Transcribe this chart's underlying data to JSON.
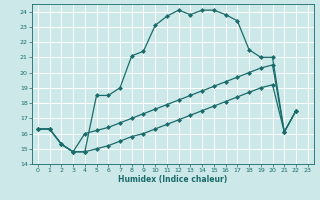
{
  "xlabel": "Humidex (Indice chaleur)",
  "background_color": "#cde8e8",
  "grid_color": "#ffffff",
  "line_color": "#1a6b6b",
  "xlim": [
    -0.5,
    23.5
  ],
  "ylim": [
    14,
    24.5
  ],
  "xticks": [
    0,
    1,
    2,
    3,
    4,
    5,
    6,
    7,
    8,
    9,
    10,
    11,
    12,
    13,
    14,
    15,
    16,
    17,
    18,
    19,
    20,
    21,
    22,
    23
  ],
  "yticks": [
    14,
    15,
    16,
    17,
    18,
    19,
    20,
    21,
    22,
    23,
    24
  ],
  "line1_x": [
    0,
    1,
    2,
    3,
    4,
    5,
    6,
    7,
    8,
    9,
    10,
    11,
    12,
    13,
    14,
    15,
    16,
    17,
    18,
    19,
    20,
    21,
    22
  ],
  "line1_y": [
    16.3,
    16.3,
    15.3,
    14.8,
    14.8,
    18.5,
    18.5,
    19.0,
    21.1,
    21.4,
    23.1,
    23.7,
    24.1,
    23.8,
    24.1,
    24.1,
    23.8,
    23.4,
    21.5,
    21.0,
    21.0,
    16.1,
    17.5
  ],
  "line2_x": [
    0,
    1,
    2,
    3,
    4,
    5,
    6,
    7,
    8,
    9,
    10,
    11,
    12,
    13,
    14,
    15,
    16,
    17,
    18,
    19,
    20,
    21,
    22
  ],
  "line2_y": [
    16.3,
    16.3,
    15.3,
    14.8,
    16.0,
    16.2,
    16.4,
    16.7,
    17.0,
    17.3,
    17.6,
    17.9,
    18.2,
    18.5,
    18.8,
    19.1,
    19.4,
    19.7,
    20.0,
    20.3,
    20.5,
    16.1,
    17.5
  ],
  "line3_x": [
    0,
    1,
    2,
    3,
    4,
    5,
    6,
    7,
    8,
    9,
    10,
    11,
    12,
    13,
    14,
    15,
    16,
    17,
    18,
    19,
    20,
    21,
    22
  ],
  "line3_y": [
    16.3,
    16.3,
    15.3,
    14.8,
    14.8,
    15.0,
    15.2,
    15.5,
    15.8,
    16.0,
    16.3,
    16.6,
    16.9,
    17.2,
    17.5,
    17.8,
    18.1,
    18.4,
    18.7,
    19.0,
    19.2,
    16.1,
    17.5
  ]
}
